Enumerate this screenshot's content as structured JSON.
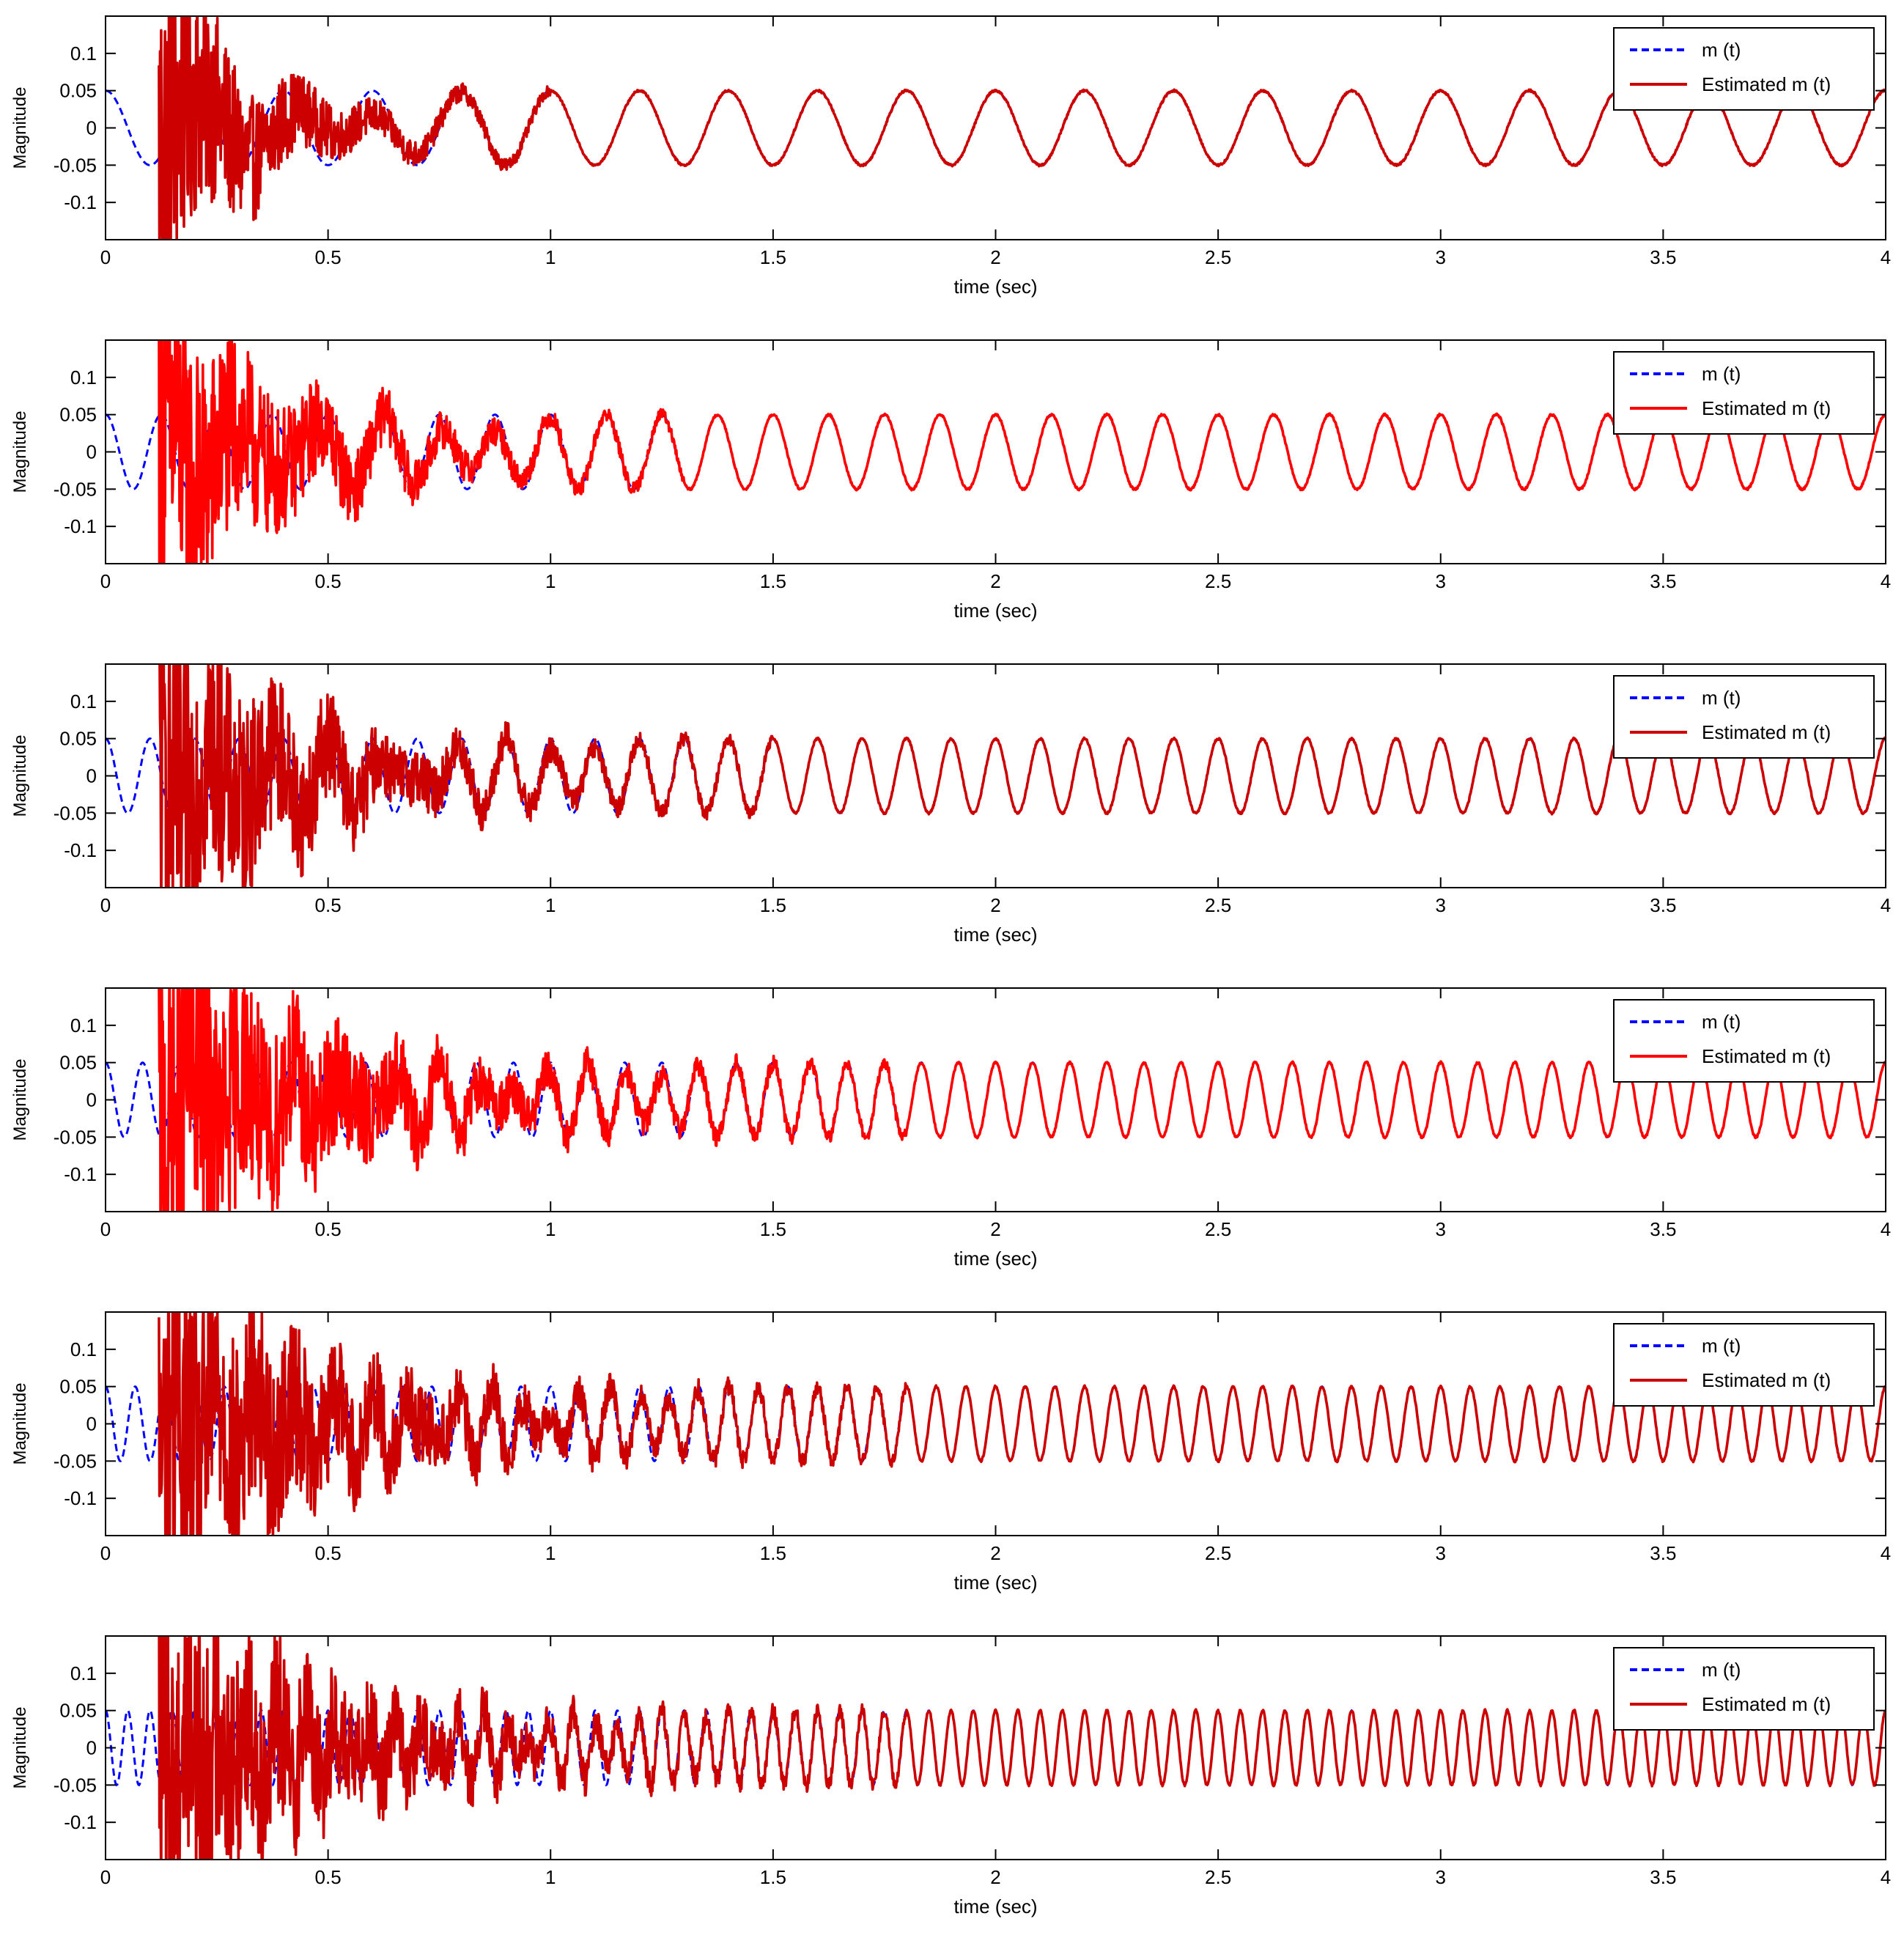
{
  "figure": {
    "panels": 6
  },
  "chart_data": [
    {
      "type": "line",
      "xlabel": "time (sec)",
      "ylabel": "Magnitude",
      "xlim": [
        0,
        4
      ],
      "ylim": [
        -0.15,
        0.15
      ],
      "xticks": [
        "0",
        "0.5",
        "1",
        "1.5",
        "2",
        "2.5",
        "3",
        "3.5",
        "4"
      ],
      "yticks": [
        "0.1",
        "0.05",
        "0",
        "-0.05",
        "-0.1"
      ],
      "grid": false,
      "legend": "top-right",
      "series": [
        {
          "name": "m (t)",
          "color": "#0000ff",
          "style": "dashed",
          "amplitude": 0.05,
          "frequency_hz": 5,
          "phase": "cosine"
        },
        {
          "name": "Estimated m (t)",
          "color": "#cc0000",
          "style": "solid",
          "amplitude": 0.05,
          "frequency_hz": 5,
          "converged_at_sec": 1.0,
          "peak_transient": 0.15
        }
      ]
    },
    {
      "type": "line",
      "xlabel": "time (sec)",
      "ylabel": "Magnitude",
      "xlim": [
        0,
        4
      ],
      "ylim": [
        -0.15,
        0.15
      ],
      "xticks": [
        "0",
        "0.5",
        "1",
        "1.5",
        "2",
        "2.5",
        "3",
        "3.5",
        "4"
      ],
      "yticks": [
        "0.1",
        "0.05",
        "0",
        "-0.05",
        "-0.1"
      ],
      "grid": false,
      "legend": "top-right",
      "series": [
        {
          "name": "m (t)",
          "color": "#0000ff",
          "style": "dashed",
          "amplitude": 0.05,
          "frequency_hz": 8,
          "phase": "cosine"
        },
        {
          "name": "Estimated m (t)",
          "color": "#ff0000",
          "style": "solid",
          "amplitude": 0.05,
          "frequency_hz": 8,
          "converged_at_sec": 1.3,
          "peak_transient": 0.15
        }
      ]
    },
    {
      "type": "line",
      "xlabel": "time (sec)",
      "ylabel": "Magnitude",
      "xlim": [
        0,
        4
      ],
      "ylim": [
        -0.15,
        0.15
      ],
      "xticks": [
        "0",
        "0.5",
        "1",
        "1.5",
        "2",
        "2.5",
        "3",
        "3.5",
        "4"
      ],
      "yticks": [
        "0.1",
        "0.05",
        "0",
        "-0.05",
        "-0.1"
      ],
      "grid": false,
      "legend": "top-right",
      "series": [
        {
          "name": "m (t)",
          "color": "#0000ff",
          "style": "dashed",
          "amplitude": 0.05,
          "frequency_hz": 10,
          "phase": "cosine"
        },
        {
          "name": "Estimated m (t)",
          "color": "#cc0000",
          "style": "solid",
          "amplitude": 0.05,
          "frequency_hz": 10,
          "converged_at_sec": 1.5,
          "peak_transient": 0.15
        }
      ]
    },
    {
      "type": "line",
      "xlabel": "time (sec)",
      "ylabel": "Magnitude",
      "xlim": [
        0,
        4
      ],
      "ylim": [
        -0.15,
        0.15
      ],
      "xticks": [
        "0",
        "0.5",
        "1",
        "1.5",
        "2",
        "2.5",
        "3",
        "3.5",
        "4"
      ],
      "yticks": [
        "0.1",
        "0.05",
        "0",
        "-0.05",
        "-0.1"
      ],
      "grid": false,
      "legend": "top-right",
      "series": [
        {
          "name": "m (t)",
          "color": "#0000ff",
          "style": "dashed",
          "amplitude": 0.05,
          "frequency_hz": 12,
          "phase": "cosine"
        },
        {
          "name": "Estimated m (t)",
          "color": "#ff0000",
          "style": "solid",
          "amplitude": 0.05,
          "frequency_hz": 12,
          "converged_at_sec": 1.8,
          "peak_transient": 0.15
        }
      ]
    },
    {
      "type": "line",
      "xlabel": "time (sec)",
      "ylabel": "Magnitude",
      "xlim": [
        0,
        4
      ],
      "ylim": [
        -0.15,
        0.15
      ],
      "xticks": [
        "0",
        "0.5",
        "1",
        "1.5",
        "2",
        "2.5",
        "3",
        "3.5",
        "4"
      ],
      "yticks": [
        "0.1",
        "0.05",
        "0",
        "-0.05",
        "-0.1"
      ],
      "grid": false,
      "legend": "top-right",
      "series": [
        {
          "name": "m (t)",
          "color": "#0000ff",
          "style": "dashed",
          "amplitude": 0.05,
          "frequency_hz": 15,
          "phase": "cosine"
        },
        {
          "name": "Estimated m (t)",
          "color": "#cc0000",
          "style": "solid",
          "amplitude": 0.05,
          "frequency_hz": 15,
          "converged_at_sec": 1.8,
          "peak_transient": 0.15
        }
      ]
    },
    {
      "type": "line",
      "xlabel": "time (sec)",
      "ylabel": "Magnitude",
      "xlim": [
        0,
        4
      ],
      "ylim": [
        -0.15,
        0.15
      ],
      "xticks": [
        "0",
        "0.5",
        "1",
        "1.5",
        "2",
        "2.5",
        "3",
        "3.5",
        "4"
      ],
      "yticks": [
        "0.1",
        "0.05",
        "0",
        "-0.05",
        "-0.1"
      ],
      "grid": false,
      "legend": "top-right",
      "series": [
        {
          "name": "m (t)",
          "color": "#0000ff",
          "style": "dashed",
          "amplitude": 0.05,
          "frequency_hz": 20,
          "phase": "cosine"
        },
        {
          "name": "Estimated m (t)",
          "color": "#cc0000",
          "style": "solid",
          "amplitude": 0.05,
          "frequency_hz": 20,
          "converged_at_sec": 1.8,
          "peak_transient": 0.15
        }
      ]
    }
  ]
}
